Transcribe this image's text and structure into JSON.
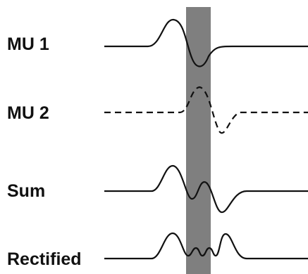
{
  "labels": {
    "mu1": "MU 1",
    "mu2": "MU 2",
    "sum": "Sum",
    "rectified": "Rectified"
  },
  "colors": {
    "trace": "#111111",
    "highlight_band": "#7f7f7f"
  },
  "traces": [
    {
      "id": "mu1",
      "style": "solid"
    },
    {
      "id": "mu2",
      "style": "dashed"
    },
    {
      "id": "sum",
      "style": "solid"
    },
    {
      "id": "rectified",
      "style": "solid"
    }
  ]
}
